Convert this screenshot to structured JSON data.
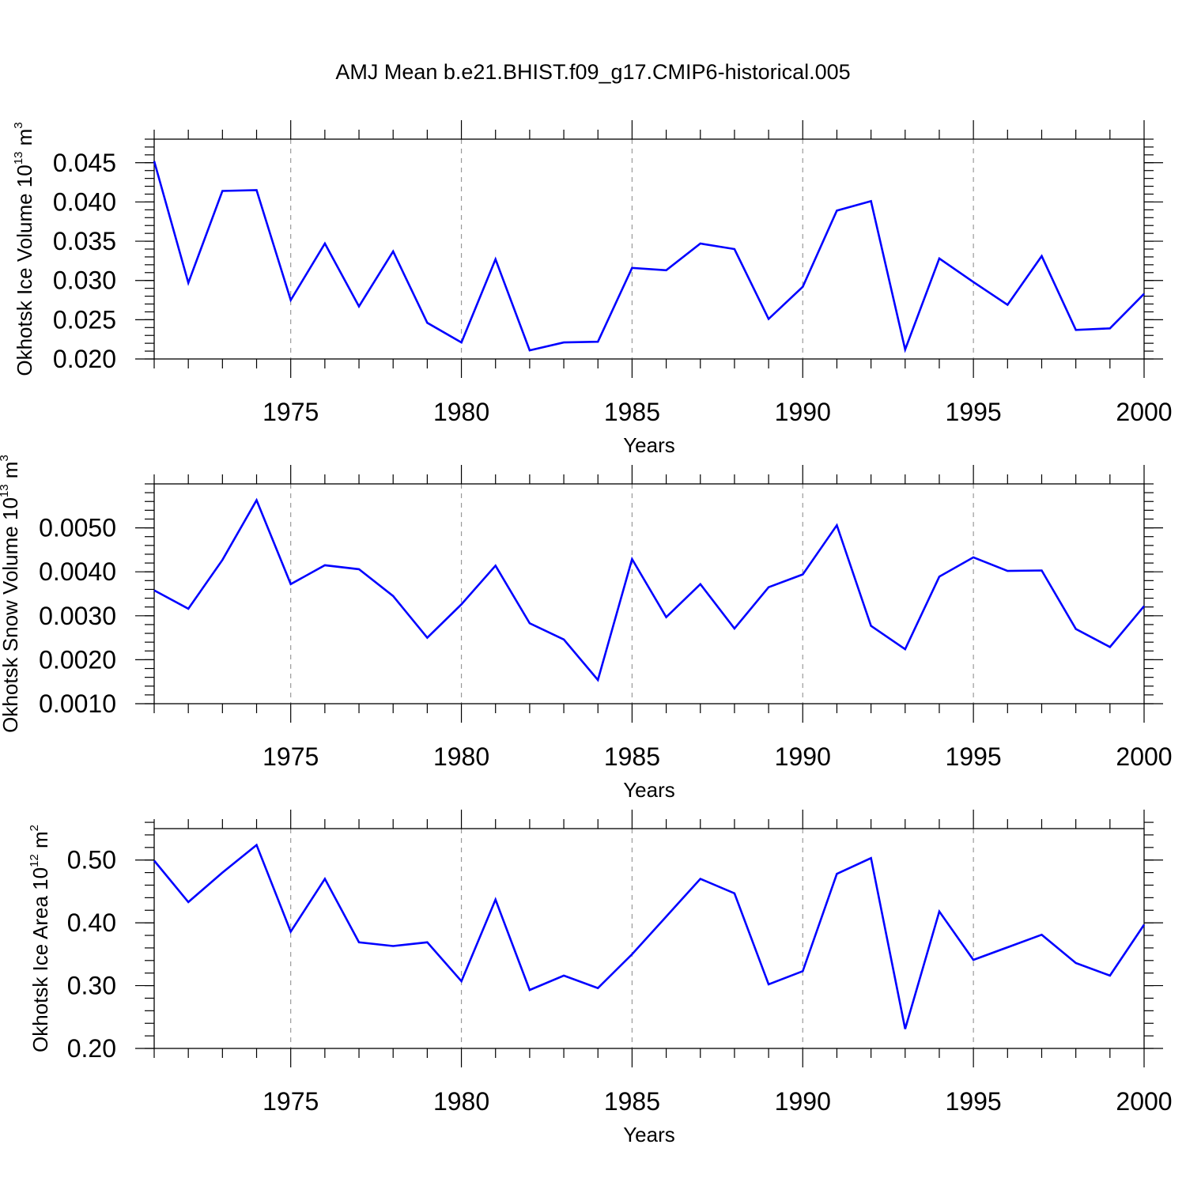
{
  "chart_data": {
    "type": "line",
    "title": "AMJ Mean b.e21.BHIST.f09_g17.CMIP6-historical.005",
    "line_color": "#0000ff",
    "x": [
      1971,
      1972,
      1973,
      1974,
      1975,
      1976,
      1977,
      1978,
      1979,
      1980,
      1981,
      1982,
      1983,
      1984,
      1985,
      1986,
      1987,
      1988,
      1989,
      1990,
      1991,
      1992,
      1993,
      1994,
      1995,
      1996,
      1997,
      1998,
      1999,
      2000
    ],
    "xlim": [
      1971,
      2000
    ],
    "xticks": [
      1975,
      1980,
      1985,
      1990,
      1995,
      2000
    ],
    "grid": "dashed vertical lines at major x ticks",
    "panels": [
      {
        "ylabel": {
          "main": "Okhotsk Ice Volume 10",
          "exp": "13",
          "unit": " m",
          "unit_exp": "3"
        },
        "xlabel": "Years",
        "ylim": [
          0.02,
          0.048
        ],
        "yticks": [
          0.02,
          0.025,
          0.03,
          0.035,
          0.04,
          0.045
        ],
        "yticklabels": [
          "0.020",
          "0.025",
          "0.030",
          "0.035",
          "0.040",
          "0.045"
        ],
        "yminor": 0.001,
        "values": [
          0.0452,
          0.0297,
          0.0414,
          0.0415,
          0.0275,
          0.0347,
          0.0267,
          0.0337,
          0.0246,
          0.0221,
          0.0327,
          0.0211,
          0.0221,
          0.0222,
          0.0316,
          0.0313,
          0.0347,
          0.034,
          0.0251,
          0.0292,
          0.0389,
          0.0401,
          0.0212,
          0.0328,
          0.0298,
          0.0269,
          0.0331,
          0.0237,
          0.0239,
          0.0283
        ]
      },
      {
        "ylabel": {
          "main": "Okhotsk Snow Volume 10",
          "exp": "13",
          "unit": " m",
          "unit_exp": "3"
        },
        "xlabel": "Years",
        "ylim": [
          0.001,
          0.006
        ],
        "yticks": [
          0.001,
          0.002,
          0.003,
          0.004,
          0.005
        ],
        "yticklabels": [
          "0.0010",
          "0.0020",
          "0.0030",
          "0.0040",
          "0.0050"
        ],
        "yminor": 0.0002,
        "values": [
          0.00358,
          0.00316,
          0.00427,
          0.00563,
          0.00372,
          0.00415,
          0.00406,
          0.00345,
          0.0025,
          0.00326,
          0.00414,
          0.00283,
          0.00246,
          0.00154,
          0.00429,
          0.00297,
          0.00372,
          0.00271,
          0.00365,
          0.00394,
          0.00506,
          0.00277,
          0.00224,
          0.00389,
          0.00433,
          0.00402,
          0.00403,
          0.0027,
          0.00229,
          0.00322
        ]
      },
      {
        "ylabel": {
          "main": "Okhotsk Ice Area 10",
          "exp": "12",
          "unit": " m",
          "unit_exp": "2"
        },
        "xlabel": "Years",
        "ylim": [
          0.2,
          0.55
        ],
        "yticks": [
          0.2,
          0.3,
          0.4,
          0.5
        ],
        "yticklabels": [
          "0.20",
          "0.30",
          "0.40",
          "0.50"
        ],
        "yminor": 0.02,
        "values": [
          0.499,
          0.433,
          0.48,
          0.524,
          0.386,
          0.47,
          0.369,
          0.363,
          0.369,
          0.307,
          0.437,
          0.293,
          0.316,
          0.296,
          0.35,
          0.41,
          0.47,
          0.447,
          0.302,
          0.323,
          0.478,
          0.503,
          0.231,
          0.418,
          0.341,
          0.361,
          0.381,
          0.336,
          0.316,
          0.397
        ]
      }
    ]
  }
}
